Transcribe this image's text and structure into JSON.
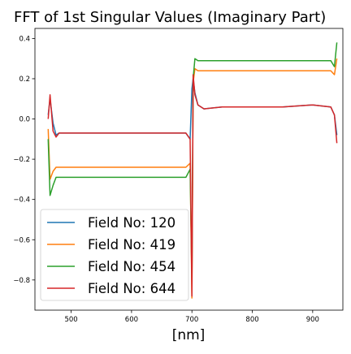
{
  "chart_data": {
    "type": "line",
    "title": "FFT of 1st Singular Values (Imaginary Part)",
    "xlabel": "[nm]",
    "ylabel": "",
    "xlim": [
      440,
      950
    ],
    "ylim": [
      -0.95,
      0.45
    ],
    "x_ticks": [
      500,
      600,
      700,
      800,
      900
    ],
    "y_ticks": [
      -0.8,
      -0.6,
      -0.4,
      -0.2,
      0.0,
      0.2,
      0.4
    ],
    "x_tick_labels": [
      "500",
      "600",
      "700",
      "800",
      "900"
    ],
    "y_tick_labels": [
      "−0.8",
      "−0.6",
      "−0.4",
      "−0.2",
      "0.0",
      "0.2",
      "0.4"
    ],
    "grid": false,
    "legend_position": "lower-left",
    "series": [
      {
        "name": "Field No: 120",
        "color": "#1f77b4",
        "x": [
          462,
          465,
          470,
          475,
          480,
          500,
          550,
          600,
          650,
          690,
          697,
          700,
          702,
          705,
          710,
          720,
          750,
          800,
          850,
          900,
          930,
          936,
          940
        ],
        "y": [
          0.02,
          0.1,
          -0.02,
          -0.08,
          -0.07,
          -0.07,
          -0.07,
          -0.07,
          -0.07,
          -0.07,
          -0.1,
          0.15,
          0.2,
          0.13,
          0.07,
          0.05,
          0.06,
          0.06,
          0.06,
          0.07,
          0.06,
          0.02,
          -0.08
        ]
      },
      {
        "name": "Field No: 419",
        "color": "#ff7f0e",
        "x": [
          462,
          465,
          470,
          475,
          480,
          500,
          550,
          600,
          650,
          690,
          697,
          700,
          702,
          705,
          710,
          720,
          750,
          800,
          850,
          900,
          930,
          936,
          940
        ],
        "y": [
          -0.05,
          -0.3,
          -0.26,
          -0.24,
          -0.24,
          -0.24,
          -0.24,
          -0.24,
          -0.24,
          -0.24,
          -0.22,
          -0.89,
          0.18,
          0.25,
          0.24,
          0.24,
          0.24,
          0.24,
          0.24,
          0.24,
          0.24,
          0.22,
          0.3
        ]
      },
      {
        "name": "Field No: 454",
        "color": "#2ca02c",
        "x": [
          462,
          465,
          470,
          475,
          480,
          500,
          550,
          600,
          650,
          690,
          697,
          700,
          702,
          705,
          710,
          720,
          750,
          800,
          850,
          900,
          930,
          936,
          940
        ],
        "y": [
          -0.1,
          -0.38,
          -0.33,
          -0.29,
          -0.29,
          -0.29,
          -0.29,
          -0.29,
          -0.29,
          -0.29,
          -0.25,
          -0.8,
          0.2,
          0.3,
          0.29,
          0.29,
          0.29,
          0.29,
          0.29,
          0.29,
          0.29,
          0.26,
          0.38
        ]
      },
      {
        "name": "Field No: 644",
        "color": "#d62728",
        "x": [
          462,
          465,
          470,
          475,
          480,
          500,
          550,
          600,
          650,
          690,
          697,
          700,
          702,
          705,
          710,
          720,
          750,
          800,
          850,
          900,
          930,
          936,
          940
        ],
        "y": [
          0.0,
          0.12,
          -0.06,
          -0.09,
          -0.07,
          -0.07,
          -0.07,
          -0.07,
          -0.07,
          -0.07,
          -0.1,
          -0.88,
          0.22,
          0.12,
          0.07,
          0.05,
          0.06,
          0.06,
          0.06,
          0.07,
          0.06,
          0.02,
          -0.12
        ]
      }
    ]
  }
}
